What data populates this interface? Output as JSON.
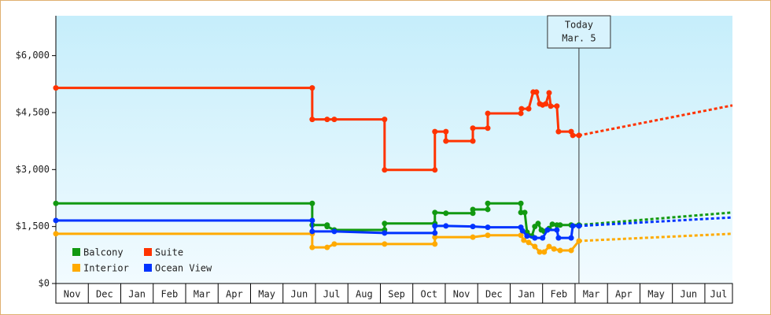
{
  "chart_data": {
    "type": "line",
    "xlim": [
      0,
      20.85
    ],
    "xticks": [
      {
        "value": 0,
        "label": "Nov"
      },
      {
        "value": 1,
        "label": "Dec"
      },
      {
        "value": 2,
        "label": "Jan"
      },
      {
        "value": 3,
        "label": "Feb"
      },
      {
        "value": 4,
        "label": "Mar"
      },
      {
        "value": 5,
        "label": "Apr"
      },
      {
        "value": 6,
        "label": "May"
      },
      {
        "value": 7,
        "label": "Jun"
      },
      {
        "value": 8,
        "label": "Jul"
      },
      {
        "value": 9,
        "label": "Aug"
      },
      {
        "value": 10,
        "label": "Sep"
      },
      {
        "value": 11,
        "label": "Oct"
      },
      {
        "value": 12,
        "label": "Nov"
      },
      {
        "value": 13,
        "label": "Dec"
      },
      {
        "value": 14,
        "label": "Jan"
      },
      {
        "value": 15,
        "label": "Feb"
      },
      {
        "value": 16,
        "label": "Mar"
      },
      {
        "value": 17,
        "label": "Apr"
      },
      {
        "value": 18,
        "label": "May"
      },
      {
        "value": 19,
        "label": "Jun"
      },
      {
        "value": 20,
        "label": "Jul"
      }
    ],
    "ylim": [
      0,
      7050
    ],
    "yticks": [
      {
        "value": 0,
        "label": "$0"
      },
      {
        "value": 1500,
        "label": "$1,500"
      },
      {
        "value": 3000,
        "label": "$3,000"
      },
      {
        "value": 4500,
        "label": "$4,500"
      },
      {
        "value": 6000,
        "label": "$6,000"
      }
    ],
    "annotation": {
      "x": 16.12,
      "lines": [
        "Today",
        "Mar. 5"
      ]
    },
    "legend": "lower left",
    "series": [
      {
        "name": "Balcony",
        "color": "#119911",
        "x": [
          0,
          7.9,
          7.9,
          8.36,
          8.36,
          8.58,
          10.13,
          10.13,
          11.68,
          11.68,
          12.02,
          12.85,
          12.85,
          13.31,
          13.31,
          14.33,
          14.33,
          14.45,
          14.52,
          14.67,
          14.76,
          14.86,
          14.96,
          15.05,
          15.2,
          15.3,
          15.44,
          15.54,
          15.88,
          16.12
        ],
        "values": [
          2110,
          2110,
          1540,
          1540,
          1500,
          1410,
          1410,
          1580,
          1580,
          1870,
          1850,
          1850,
          1950,
          1950,
          2110,
          2110,
          1870,
          1870,
          1350,
          1250,
          1500,
          1580,
          1410,
          1370,
          1450,
          1560,
          1540,
          1540,
          1540,
          1540
        ],
        "forecast_x": [
          16.12,
          20.85
        ],
        "forecast": [
          1540,
          1870
        ]
      },
      {
        "name": "Suite",
        "color": "#ff3300",
        "x": [
          0,
          7.9,
          7.9,
          8.36,
          8.58,
          10.13,
          10.13,
          11.68,
          11.68,
          12.02,
          12.02,
          12.85,
          12.85,
          13.31,
          13.31,
          14.33,
          14.35,
          14.57,
          14.71,
          14.81,
          14.91,
          15.0,
          15.1,
          15.2,
          15.25,
          15.44,
          15.49,
          15.88,
          15.93,
          16.12
        ],
        "values": [
          5150,
          5150,
          4320,
          4320,
          4320,
          4320,
          2990,
          2990,
          4000,
          4000,
          3750,
          3750,
          4090,
          4090,
          4480,
          4480,
          4600,
          4600,
          5040,
          5040,
          4730,
          4700,
          4730,
          5020,
          4670,
          4670,
          4000,
          4000,
          3900,
          3900
        ],
        "forecast_x": [
          16.12,
          20.85
        ],
        "forecast": [
          3900,
          4690
        ]
      },
      {
        "name": "Interior",
        "color": "#ffaa00",
        "x": [
          0,
          7.9,
          7.9,
          8.36,
          8.58,
          10.13,
          11.68,
          11.68,
          12.85,
          13.31,
          14.33,
          14.42,
          14.57,
          14.76,
          14.91,
          15.05,
          15.2,
          15.35,
          15.54,
          15.88,
          16.12
        ],
        "values": [
          1310,
          1310,
          950,
          950,
          1040,
          1040,
          1040,
          1220,
          1220,
          1270,
          1270,
          1140,
          1080,
          975,
          830,
          830,
          975,
          910,
          870,
          870,
          1120
        ],
        "forecast_x": [
          16.12,
          20.85
        ],
        "forecast": [
          1120,
          1310
        ]
      },
      {
        "name": "Ocean View",
        "color": "#0033ff",
        "x": [
          0,
          7.9,
          7.9,
          8.58,
          10.13,
          11.68,
          11.68,
          12.02,
          12.85,
          13.31,
          14.33,
          14.38,
          14.52,
          14.76,
          15.0,
          15.15,
          15.44,
          15.49,
          15.88,
          15.93,
          16.12
        ],
        "values": [
          1660,
          1660,
          1370,
          1370,
          1330,
          1330,
          1515,
          1515,
          1500,
          1480,
          1480,
          1390,
          1250,
          1200,
          1200,
          1410,
          1410,
          1200,
          1200,
          1515,
          1515
        ],
        "forecast_x": [
          16.12,
          20.85
        ],
        "forecast": [
          1515,
          1740
        ]
      }
    ]
  }
}
